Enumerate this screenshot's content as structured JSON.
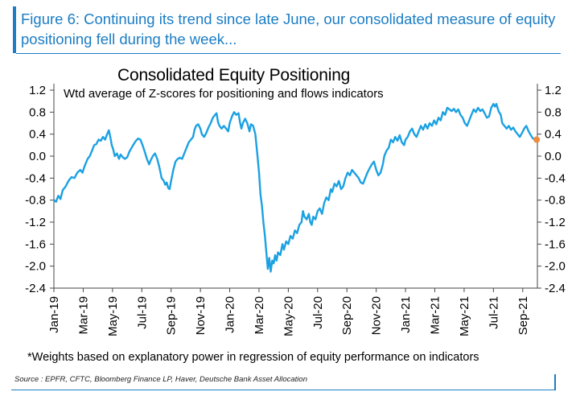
{
  "header": {
    "figure_caption": "Figure 6: Continuing its trend since late June, our consolidated measure of equity positioning fell during the week..."
  },
  "chart_data": {
    "type": "line",
    "title": "Consolidated Equity Positioning",
    "subtitle": "Wtd average of Z-scores for positioning and flows indicators",
    "xlabel": "",
    "ylabel": "",
    "ylim": [
      -2.4,
      1.2
    ],
    "yticks": [
      "1.2",
      "0.8",
      "0.4",
      "0.0",
      "-0.4",
      "-0.8",
      "-1.2",
      "-1.6",
      "-2.0",
      "-2.4"
    ],
    "ytick_values": [
      1.2,
      0.8,
      0.4,
      0.0,
      -0.4,
      -0.8,
      -1.2,
      -1.6,
      -2.0,
      -2.4
    ],
    "xlim_months": [
      0,
      33
    ],
    "xticks": [
      "Jan-19",
      "Mar-19",
      "May-19",
      "Jul-19",
      "Sep-19",
      "Nov-19",
      "Jan-20",
      "Mar-20",
      "May-20",
      "Jul-20",
      "Sep-20",
      "Nov-20",
      "Jan-21",
      "Mar-21",
      "May-21",
      "Jul-21",
      "Sep-21"
    ],
    "xtick_months": [
      0,
      2,
      4,
      6,
      8,
      10,
      12,
      14,
      16,
      18,
      20,
      22,
      24,
      26,
      28,
      30,
      32
    ],
    "grid": false,
    "series": [
      {
        "name": "Consolidated Equity Positioning",
        "color": "#1ba1e2",
        "points": [
          [
            0.0,
            -0.8
          ],
          [
            0.15,
            -0.83
          ],
          [
            0.3,
            -0.72
          ],
          [
            0.45,
            -0.78
          ],
          [
            0.6,
            -0.62
          ],
          [
            0.8,
            -0.55
          ],
          [
            1.0,
            -0.45
          ],
          [
            1.2,
            -0.38
          ],
          [
            1.4,
            -0.4
          ],
          [
            1.6,
            -0.3
          ],
          [
            1.8,
            -0.25
          ],
          [
            1.95,
            -0.3
          ],
          [
            2.1,
            -0.18
          ],
          [
            2.3,
            -0.05
          ],
          [
            2.45,
            0.0
          ],
          [
            2.6,
            0.1
          ],
          [
            2.75,
            0.2
          ],
          [
            2.9,
            0.22
          ],
          [
            3.05,
            0.3
          ],
          [
            3.2,
            0.28
          ],
          [
            3.35,
            0.35
          ],
          [
            3.5,
            0.3
          ],
          [
            3.6,
            0.38
          ],
          [
            3.75,
            0.47
          ],
          [
            3.85,
            0.35
          ],
          [
            3.95,
            0.2
          ],
          [
            4.05,
            0.12
          ],
          [
            4.15,
            0.0
          ],
          [
            4.3,
            0.05
          ],
          [
            4.45,
            -0.05
          ],
          [
            4.55,
            0.03
          ],
          [
            4.7,
            -0.02
          ],
          [
            4.85,
            -0.05
          ],
          [
            5.0,
            -0.02
          ],
          [
            5.15,
            0.08
          ],
          [
            5.3,
            0.15
          ],
          [
            5.45,
            0.22
          ],
          [
            5.6,
            0.28
          ],
          [
            5.75,
            0.32
          ],
          [
            5.9,
            0.3
          ],
          [
            6.05,
            0.2
          ],
          [
            6.2,
            0.08
          ],
          [
            6.35,
            -0.05
          ],
          [
            6.5,
            -0.15
          ],
          [
            6.6,
            -0.08
          ],
          [
            6.75,
            0.0
          ],
          [
            6.9,
            0.05
          ],
          [
            7.05,
            -0.05
          ],
          [
            7.2,
            -0.2
          ],
          [
            7.35,
            -0.4
          ],
          [
            7.5,
            -0.45
          ],
          [
            7.6,
            -0.52
          ],
          [
            7.7,
            -0.48
          ],
          [
            7.8,
            -0.58
          ],
          [
            7.9,
            -0.6
          ],
          [
            8.0,
            -0.45
          ],
          [
            8.15,
            -0.25
          ],
          [
            8.3,
            -0.1
          ],
          [
            8.45,
            -0.05
          ],
          [
            8.6,
            -0.03
          ],
          [
            8.75,
            -0.05
          ],
          [
            8.9,
            0.05
          ],
          [
            9.05,
            0.15
          ],
          [
            9.2,
            0.25
          ],
          [
            9.35,
            0.3
          ],
          [
            9.5,
            0.35
          ],
          [
            9.6,
            0.48
          ],
          [
            9.7,
            0.55
          ],
          [
            9.85,
            0.58
          ],
          [
            10.0,
            0.5
          ],
          [
            10.1,
            0.4
          ],
          [
            10.25,
            0.35
          ],
          [
            10.4,
            0.42
          ],
          [
            10.55,
            0.52
          ],
          [
            10.7,
            0.6
          ],
          [
            10.85,
            0.7
          ],
          [
            11.0,
            0.75
          ],
          [
            11.1,
            0.78
          ],
          [
            11.2,
            0.62
          ],
          [
            11.3,
            0.55
          ],
          [
            11.45,
            0.5
          ],
          [
            11.6,
            0.55
          ],
          [
            11.75,
            0.5
          ],
          [
            11.9,
            0.45
          ],
          [
            12.0,
            0.6
          ],
          [
            12.15,
            0.72
          ],
          [
            12.3,
            0.8
          ],
          [
            12.45,
            0.75
          ],
          [
            12.6,
            0.78
          ],
          [
            12.7,
            0.62
          ],
          [
            12.8,
            0.5
          ],
          [
            12.9,
            0.6
          ],
          [
            13.05,
            0.68
          ],
          [
            13.2,
            0.6
          ],
          [
            13.35,
            0.45
          ],
          [
            13.45,
            0.58
          ],
          [
            13.6,
            0.55
          ],
          [
            13.75,
            0.4
          ],
          [
            13.9,
            0.0
          ],
          [
            14.0,
            -0.3
          ],
          [
            14.1,
            -0.7
          ],
          [
            14.2,
            -0.9
          ],
          [
            14.3,
            -1.2
          ],
          [
            14.4,
            -1.45
          ],
          [
            14.5,
            -1.75
          ],
          [
            14.6,
            -2.05
          ],
          [
            14.7,
            -1.85
          ],
          [
            14.8,
            -2.1
          ],
          [
            14.9,
            -1.9
          ],
          [
            15.0,
            -1.95
          ],
          [
            15.1,
            -1.8
          ],
          [
            15.2,
            -1.9
          ],
          [
            15.3,
            -1.75
          ],
          [
            15.45,
            -1.8
          ],
          [
            15.6,
            -1.6
          ],
          [
            15.7,
            -1.7
          ],
          [
            15.85,
            -1.55
          ],
          [
            16.0,
            -1.6
          ],
          [
            16.15,
            -1.45
          ],
          [
            16.3,
            -1.5
          ],
          [
            16.45,
            -1.35
          ],
          [
            16.6,
            -1.4
          ],
          [
            16.75,
            -1.25
          ],
          [
            16.9,
            -1.2
          ],
          [
            17.0,
            -1.0
          ],
          [
            17.1,
            -1.1
          ],
          [
            17.25,
            -1.15
          ],
          [
            17.4,
            -1.05
          ],
          [
            17.5,
            -1.2
          ],
          [
            17.6,
            -1.25
          ],
          [
            17.7,
            -1.1
          ],
          [
            17.85,
            -1.15
          ],
          [
            18.0,
            -1.0
          ],
          [
            18.15,
            -0.95
          ],
          [
            18.3,
            -1.05
          ],
          [
            18.45,
            -0.85
          ],
          [
            18.6,
            -0.75
          ],
          [
            18.75,
            -0.8
          ],
          [
            18.9,
            -0.6
          ],
          [
            19.0,
            -0.65
          ],
          [
            19.15,
            -0.5
          ],
          [
            19.3,
            -0.55
          ],
          [
            19.45,
            -0.45
          ],
          [
            19.6,
            -0.6
          ],
          [
            19.75,
            -0.55
          ],
          [
            19.9,
            -0.4
          ],
          [
            20.05,
            -0.3
          ],
          [
            20.2,
            -0.35
          ],
          [
            20.35,
            -0.25
          ],
          [
            20.5,
            -0.3
          ],
          [
            20.65,
            -0.35
          ],
          [
            20.8,
            -0.4
          ],
          [
            20.95,
            -0.48
          ],
          [
            21.1,
            -0.5
          ],
          [
            21.25,
            -0.4
          ],
          [
            21.4,
            -0.3
          ],
          [
            21.55,
            -0.22
          ],
          [
            21.7,
            -0.15
          ],
          [
            21.85,
            -0.1
          ],
          [
            22.0,
            -0.25
          ],
          [
            22.15,
            -0.35
          ],
          [
            22.3,
            -0.3
          ],
          [
            22.45,
            -0.15
          ],
          [
            22.55,
            0.0
          ],
          [
            22.7,
            0.1
          ],
          [
            22.85,
            0.15
          ],
          [
            23.0,
            0.3
          ],
          [
            23.15,
            0.25
          ],
          [
            23.3,
            0.35
          ],
          [
            23.45,
            0.28
          ],
          [
            23.6,
            0.38
          ],
          [
            23.75,
            0.25
          ],
          [
            23.9,
            0.2
          ],
          [
            24.0,
            0.3
          ],
          [
            24.15,
            0.35
          ],
          [
            24.3,
            0.45
          ],
          [
            24.45,
            0.5
          ],
          [
            24.6,
            0.4
          ],
          [
            24.75,
            0.35
          ],
          [
            24.9,
            0.45
          ],
          [
            25.05,
            0.55
          ],
          [
            25.2,
            0.48
          ],
          [
            25.35,
            0.58
          ],
          [
            25.5,
            0.5
          ],
          [
            25.65,
            0.6
          ],
          [
            25.8,
            0.55
          ],
          [
            25.95,
            0.65
          ],
          [
            26.1,
            0.58
          ],
          [
            26.25,
            0.7
          ],
          [
            26.4,
            0.65
          ],
          [
            26.55,
            0.8
          ],
          [
            26.7,
            0.75
          ],
          [
            26.85,
            0.88
          ],
          [
            27.0,
            0.85
          ],
          [
            27.15,
            0.82
          ],
          [
            27.3,
            0.86
          ],
          [
            27.45,
            0.8
          ],
          [
            27.6,
            0.85
          ],
          [
            27.75,
            0.75
          ],
          [
            27.9,
            0.7
          ],
          [
            28.05,
            0.6
          ],
          [
            28.2,
            0.55
          ],
          [
            28.35,
            0.65
          ],
          [
            28.5,
            0.75
          ],
          [
            28.65,
            0.85
          ],
          [
            28.8,
            0.8
          ],
          [
            28.95,
            0.88
          ],
          [
            29.1,
            0.82
          ],
          [
            29.25,
            0.85
          ],
          [
            29.4,
            0.78
          ],
          [
            29.55,
            0.7
          ],
          [
            29.7,
            0.72
          ],
          [
            29.85,
            0.88
          ],
          [
            30.0,
            0.95
          ],
          [
            30.1,
            0.9
          ],
          [
            30.2,
            0.95
          ],
          [
            30.35,
            0.82
          ],
          [
            30.5,
            0.75
          ],
          [
            30.6,
            0.6
          ],
          [
            30.75,
            0.55
          ],
          [
            30.9,
            0.5
          ],
          [
            31.05,
            0.55
          ],
          [
            31.2,
            0.48
          ],
          [
            31.35,
            0.52
          ],
          [
            31.5,
            0.45
          ],
          [
            31.65,
            0.4
          ],
          [
            31.8,
            0.35
          ],
          [
            31.95,
            0.42
          ],
          [
            32.1,
            0.5
          ],
          [
            32.25,
            0.55
          ],
          [
            32.4,
            0.45
          ],
          [
            32.55,
            0.38
          ],
          [
            32.7,
            0.32
          ],
          [
            32.85,
            0.3
          ]
        ]
      }
    ],
    "latest_point": {
      "x": 32.95,
      "y": 0.3,
      "color": "#f08a3c"
    }
  },
  "footnote": "*Weights based on explanatory power in regression of equity performance on indicators",
  "source": "Source : EPFR, CFTC, Bloomberg Finance LP, Haver, Deutsche Bank Asset Allocation"
}
